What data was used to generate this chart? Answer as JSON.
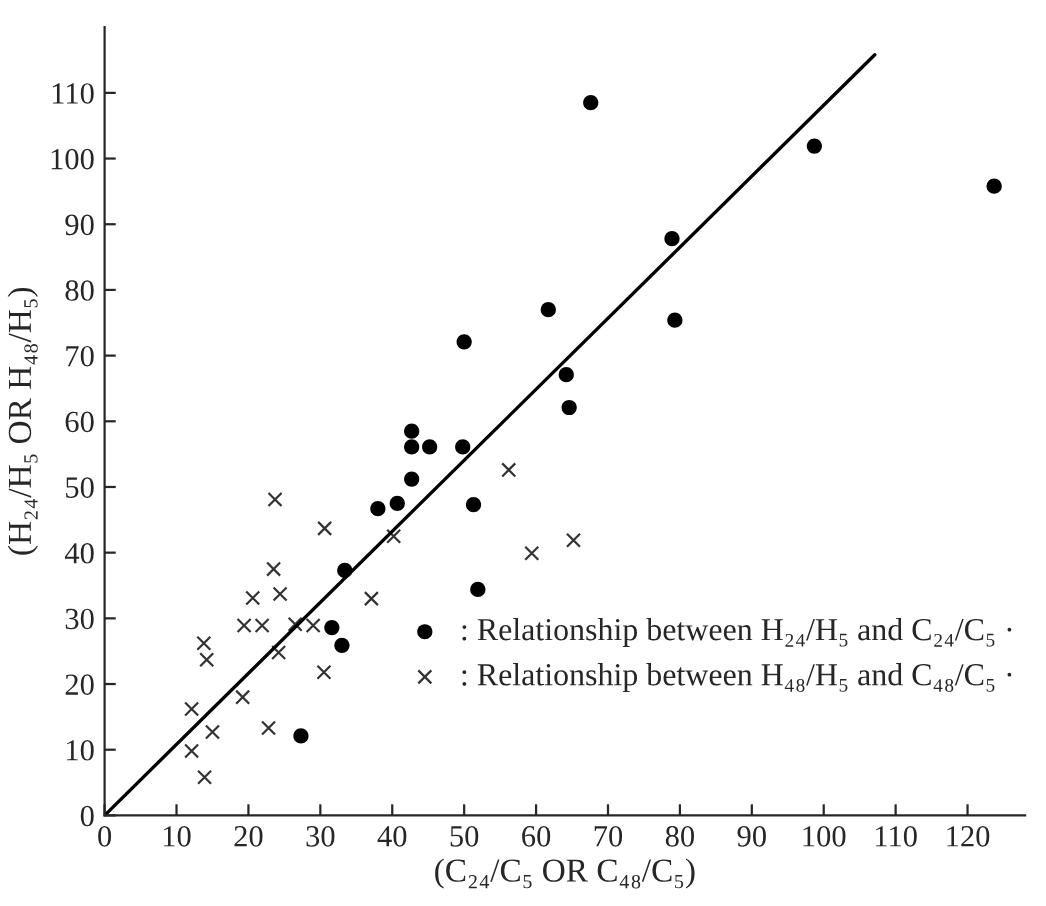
{
  "chart_data": {
    "type": "scatter",
    "xlabel": "(C₂₄/C₅ OR C₄₈/C₅)",
    "ylabel": "(H₂₄/H₅ OR H₄₈/H₅)",
    "xlim": [
      0,
      128
    ],
    "ylim": [
      0,
      120
    ],
    "xticks": [
      0,
      10,
      20,
      30,
      40,
      50,
      60,
      70,
      80,
      90,
      100,
      110,
      120
    ],
    "yticks": [
      0,
      10,
      20,
      30,
      40,
      50,
      60,
      70,
      80,
      90,
      100,
      110
    ],
    "grid": false,
    "legend": "bottom right",
    "series": [
      {
        "name": ": Relationship between H₂₄/H₅ and C₂₄/C₅ ·",
        "color": "#000000",
        "marker": "circle",
        "x": [
          67.6,
          98.7,
          123.7,
          78.9,
          79.3,
          61.7,
          50.0,
          64.2,
          64.6,
          42.7,
          42.7,
          45.2,
          49.8,
          42.7,
          38.0,
          40.7,
          51.3,
          33.4,
          51.9,
          31.6,
          33.0,
          27.3
        ],
        "values": [
          108.5,
          101.9,
          95.8,
          87.8,
          75.4,
          77.0,
          72.1,
          67.1,
          62.1,
          58.5,
          56.1,
          56.1,
          56.1,
          51.2,
          46.7,
          47.5,
          47.3,
          37.3,
          34.4,
          28.6,
          25.9,
          12.1
        ]
      },
      {
        "name": ": Relationship between H₄₈/H₅ and C₄₈/C₅ ·",
        "color": "#333333",
        "marker": "cross",
        "x": [
          23.7,
          30.6,
          40.2,
          56.2,
          65.2,
          59.4,
          23.5,
          37.1,
          20.6,
          24.4,
          19.4,
          21.9,
          26.5,
          29.0,
          13.8,
          14.2,
          24.2,
          30.5,
          19.2,
          12.1,
          15.0,
          22.8,
          12.1,
          13.9
        ],
        "values": [
          48.1,
          43.7,
          42.5,
          52.6,
          41.9,
          39.9,
          37.5,
          33.0,
          33.1,
          33.7,
          28.9,
          28.9,
          29.1,
          28.9,
          26.2,
          23.7,
          24.8,
          21.8,
          18.0,
          16.2,
          12.7,
          13.3,
          9.8,
          5.8
        ]
      },
      {
        "type": "line",
        "color": "#000000",
        "line_style": "solid",
        "marker": "none",
        "x": [
          0,
          107.1
        ],
        "values": [
          0,
          115.8
        ]
      }
    ]
  }
}
